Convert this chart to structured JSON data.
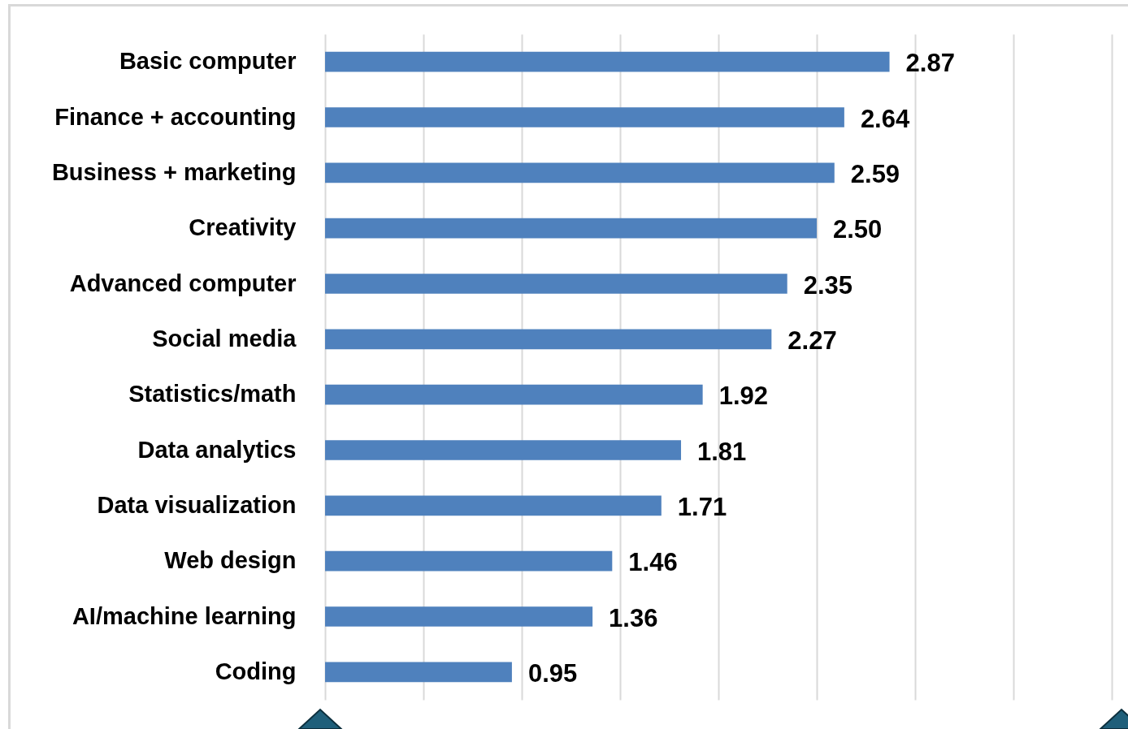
{
  "chart_data": {
    "type": "bar",
    "orientation": "horizontal",
    "categories": [
      "Basic computer",
      "Finance + accounting",
      "Business + marketing",
      "Creativity",
      "Advanced computer",
      "Social media",
      "Statistics/math",
      "Data analytics",
      "Data visualization",
      "Web design",
      "AI/machine learning",
      "Coding"
    ],
    "values": [
      2.87,
      2.64,
      2.59,
      2.5,
      2.35,
      2.27,
      1.92,
      1.81,
      1.71,
      1.46,
      1.36,
      0.95
    ],
    "value_labels": [
      "2.87",
      "2.64",
      "2.59",
      "2.50",
      "2.35",
      "2.27",
      "1.92",
      "1.81",
      "1.71",
      "1.46",
      "1.36",
      "0.95"
    ],
    "color": "#4f81bd",
    "xlim": [
      0,
      4
    ],
    "xticks": [
      {
        "value": 0,
        "label": null
      },
      {
        "value": 0.5,
        "label": null
      },
      {
        "value": 1,
        "label": null
      },
      {
        "value": 1.5,
        "label": null
      },
      {
        "value": 2,
        "label": null
      },
      {
        "value": 2.5,
        "label": null
      },
      {
        "value": 3,
        "label": null
      },
      {
        "value": 3.5,
        "label": null
      },
      {
        "value": 4,
        "label": null
      }
    ],
    "grid": "x",
    "tick_labels": "y"
  }
}
